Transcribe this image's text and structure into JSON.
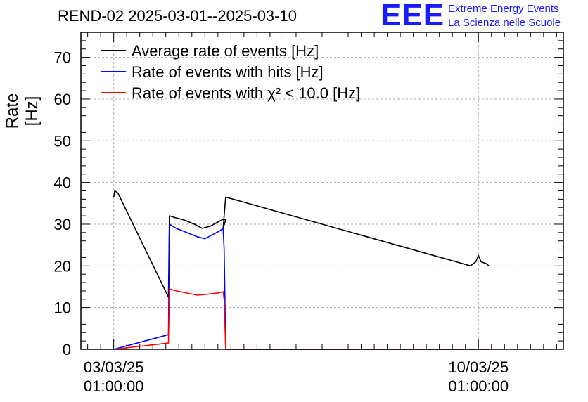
{
  "header": {
    "title": "REND-02 2025-03-01--2025-03-10",
    "logo_text": "EEE",
    "logo_line1": "Extreme Energy Events",
    "logo_line2": "La Scienza nelle Scuole"
  },
  "colors": {
    "logo": "#1a1aff",
    "average": "#000000",
    "hits": "#0000ff",
    "chi2": "#ff0000",
    "grid": "#aaaaaa"
  },
  "chart_data": {
    "type": "line",
    "title": "REND-02 2025-03-01--2025-03-10",
    "ylabel": "Rate [Hz]",
    "xlabel": "",
    "x_unit": "days since 03/03/25 01:00:00",
    "xlim": [
      -0.63,
      8.63
    ],
    "ylim": [
      0,
      76
    ],
    "yticks": [
      0,
      10,
      20,
      30,
      40,
      50,
      60,
      70
    ],
    "xticks": [
      {
        "x": 0,
        "line1": "03/03/25",
        "line2": "01:00:00"
      },
      {
        "x": 7,
        "line1": "10/03/25",
        "line2": "01:00:00"
      }
    ],
    "grid": true,
    "legend_position": "top-left",
    "series": [
      {
        "name": "Average rate of events [Hz]",
        "color": "#000000",
        "points": [
          [
            0.0,
            36.5
          ],
          [
            0.02,
            38.0
          ],
          [
            0.08,
            37.5
          ],
          [
            1.05,
            12.5
          ],
          [
            1.07,
            32.0
          ],
          [
            1.2,
            31.5
          ],
          [
            1.35,
            31.0
          ],
          [
            1.55,
            30.0
          ],
          [
            1.7,
            29.0
          ],
          [
            1.85,
            29.5
          ],
          [
            2.0,
            30.5
          ],
          [
            2.1,
            31.2
          ],
          [
            2.15,
            31.0
          ],
          [
            2.1,
            29.0
          ],
          [
            2.15,
            36.5
          ],
          [
            6.85,
            20.0
          ],
          [
            6.95,
            21.0
          ],
          [
            7.0,
            22.5
          ],
          [
            7.05,
            21.0
          ],
          [
            7.15,
            20.5
          ],
          [
            7.2,
            20.0
          ]
        ]
      },
      {
        "name": "Rate of events with hits [Hz]",
        "color": "#0000ff",
        "points": [
          [
            0.0,
            0.0
          ],
          [
            1.05,
            3.5
          ],
          [
            1.07,
            30.0
          ],
          [
            1.2,
            29.0
          ],
          [
            1.4,
            28.0
          ],
          [
            1.6,
            27.0
          ],
          [
            1.75,
            26.5
          ],
          [
            1.9,
            27.5
          ],
          [
            2.05,
            28.5
          ],
          [
            2.1,
            29.0
          ],
          [
            2.12,
            24.0
          ],
          [
            2.15,
            0.0
          ],
          [
            7.2,
            0.0
          ]
        ]
      },
      {
        "name": "Rate of events with χ² < 10.0 [Hz]",
        "color": "#ff0000",
        "points": [
          [
            0.0,
            0.0
          ],
          [
            1.05,
            1.5
          ],
          [
            1.07,
            14.5
          ],
          [
            1.2,
            14.0
          ],
          [
            1.4,
            13.5
          ],
          [
            1.6,
            13.0
          ],
          [
            1.8,
            13.2
          ],
          [
            2.0,
            13.5
          ],
          [
            2.1,
            13.8
          ],
          [
            2.12,
            12.0
          ],
          [
            2.15,
            0.0
          ],
          [
            7.2,
            0.0
          ]
        ]
      }
    ]
  }
}
